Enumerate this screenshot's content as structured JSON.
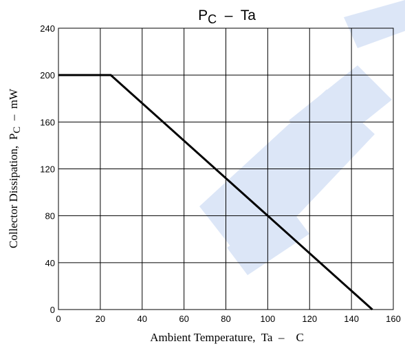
{
  "chart_data": {
    "type": "line",
    "title_main": "P",
    "title_sub": "C",
    "title_rest": "  –  Ta",
    "xlabel": "Ambient Temperature,  Ta  –    C",
    "ylabel_main": "Collector Dissipation,  P",
    "ylabel_sub": "C",
    "ylabel_rest": "  –  mW",
    "xlim": [
      0,
      160
    ],
    "ylim": [
      0,
      240
    ],
    "xticks": [
      0,
      20,
      40,
      60,
      80,
      100,
      120,
      140,
      160
    ],
    "yticks": [
      0,
      40,
      80,
      120,
      160,
      200,
      240
    ],
    "grid": true,
    "series": [
      {
        "x": [
          0,
          25,
          150
        ],
        "y": [
          200,
          200,
          0
        ]
      }
    ],
    "line_color": "#000000",
    "watermark_color": "#dce6f7"
  }
}
